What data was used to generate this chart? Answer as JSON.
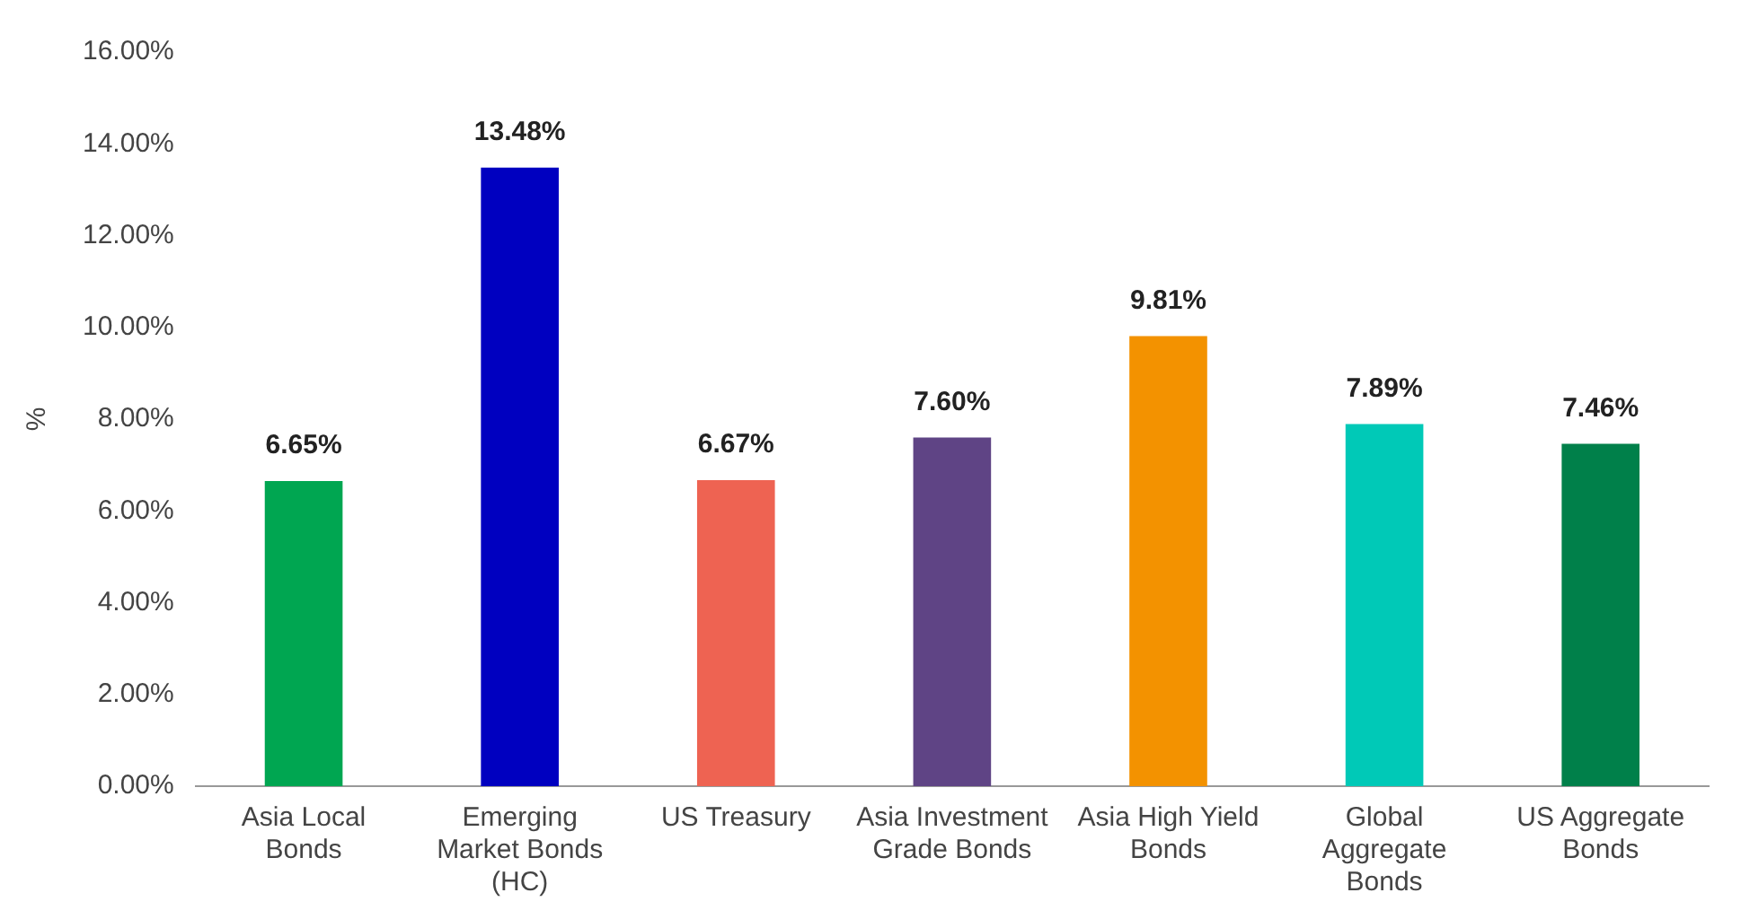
{
  "chart_data": {
    "type": "bar",
    "ylabel": "%",
    "categories": [
      "Asia Local Bonds",
      "Emerging Market Bonds (HC)",
      "US Treasury",
      "Asia Investment Grade Bonds",
      "Asia High Yield Bonds",
      "Global Aggregate Bonds",
      "US Aggregate Bonds"
    ],
    "values": [
      6.65,
      13.48,
      6.67,
      7.6,
      9.81,
      7.89,
      7.46
    ],
    "colors": [
      "#00a651",
      "#0000c0",
      "#ee6352",
      "#5f4485",
      "#f39200",
      "#00c9b7",
      "#00804a"
    ],
    "value_labels": [
      "6.65%",
      "13.48%",
      "6.67%",
      "7.60%",
      "9.81%",
      "7.89%",
      "7.46%"
    ],
    "ylim": [
      0,
      16
    ],
    "yticks": [
      {
        "value": 0,
        "label": "0.00%"
      },
      {
        "value": 2,
        "label": "2.00%"
      },
      {
        "value": 4,
        "label": "4.00%"
      },
      {
        "value": 6,
        "label": "6.00%"
      },
      {
        "value": 8,
        "label": "8.00%"
      },
      {
        "value": 10,
        "label": "10.00%"
      },
      {
        "value": 12,
        "label": "12.00%"
      },
      {
        "value": 14,
        "label": "14.00%"
      },
      {
        "value": 16,
        "label": "16.00%"
      }
    ],
    "grid": false,
    "legend": false
  }
}
